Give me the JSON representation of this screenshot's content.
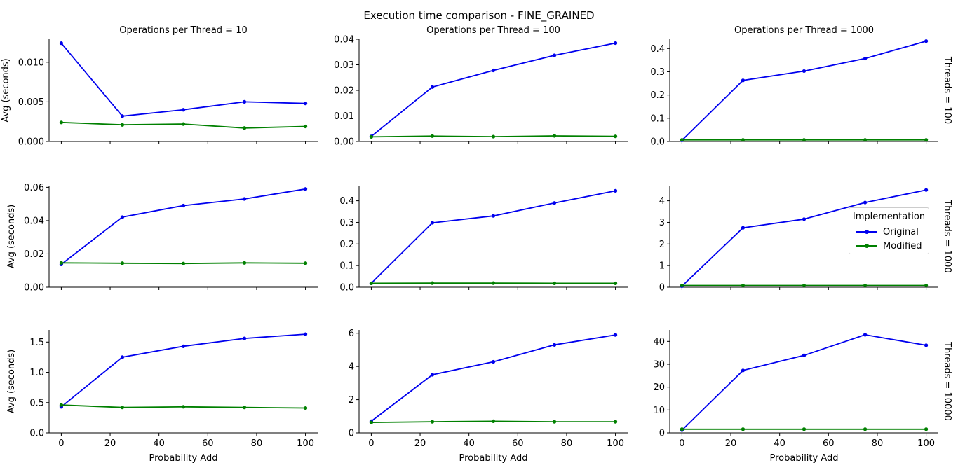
{
  "title": "Execution time comparison - FINE_GRAINED",
  "xlabel": "Probability Add",
  "ylabel": "Avg (seconds)",
  "colors": {
    "Original": "#0000ee",
    "Modified": "#008000"
  },
  "legend": {
    "title": "Implementation",
    "items": [
      "Original",
      "Modified"
    ],
    "placement": "right"
  },
  "col_titles": [
    "Operations per Thread = 10",
    "Operations per Thread = 100",
    "Operations per Thread = 1000"
  ],
  "row_titles": [
    "Threads = 100",
    "Threads = 1000",
    "Threads = 10000"
  ],
  "chart_data": {
    "type": "line",
    "x": [
      0,
      25,
      50,
      75,
      100
    ],
    "xticks": [
      0,
      20,
      40,
      60,
      80,
      100
    ],
    "xlim": [
      -5,
      105
    ],
    "panels": [
      {
        "row": 0,
        "col": 0,
        "ylim": [
          0,
          0.0129
        ],
        "yticks": [
          0.0,
          0.005,
          0.01
        ],
        "yticklabels": [
          "0.000",
          "0.005",
          "0.010"
        ],
        "series": [
          {
            "name": "Original",
            "values": [
              0.0124,
              0.0032,
              0.004,
              0.005,
              0.0048
            ]
          },
          {
            "name": "Modified",
            "values": [
              0.0024,
              0.0021,
              0.0022,
              0.0017,
              0.0019
            ]
          }
        ]
      },
      {
        "row": 0,
        "col": 1,
        "ylim": [
          0,
          0.04
        ],
        "yticks": [
          0.0,
          0.01,
          0.02,
          0.03,
          0.04
        ],
        "yticklabels": [
          "0.00",
          "0.01",
          "0.02",
          "0.03",
          "0.04"
        ],
        "series": [
          {
            "name": "Original",
            "values": [
              0.002,
              0.0213,
              0.0278,
              0.0337,
              0.0385
            ]
          },
          {
            "name": "Modified",
            "values": [
              0.0018,
              0.0021,
              0.0019,
              0.0022,
              0.002
            ]
          }
        ]
      },
      {
        "row": 0,
        "col": 2,
        "ylim": [
          0,
          0.44
        ],
        "yticks": [
          0.0,
          0.1,
          0.2,
          0.3,
          0.4
        ],
        "yticklabels": [
          "0.0",
          "0.1",
          "0.2",
          "0.3",
          "0.4"
        ],
        "series": [
          {
            "name": "Original",
            "values": [
              0.005,
              0.263,
              0.303,
              0.357,
              0.432
            ]
          },
          {
            "name": "Modified",
            "values": [
              0.007,
              0.007,
              0.007,
              0.007,
              0.007
            ]
          }
        ]
      },
      {
        "row": 1,
        "col": 0,
        "ylim": [
          0,
          0.061
        ],
        "yticks": [
          0.0,
          0.02,
          0.04,
          0.06
        ],
        "yticklabels": [
          "0.00",
          "0.02",
          "0.04",
          "0.06"
        ],
        "series": [
          {
            "name": "Original",
            "values": [
              0.0137,
              0.0421,
              0.049,
              0.053,
              0.059
            ]
          },
          {
            "name": "Modified",
            "values": [
              0.0146,
              0.0144,
              0.0142,
              0.0146,
              0.0144
            ]
          }
        ]
      },
      {
        "row": 1,
        "col": 1,
        "ylim": [
          0,
          0.47
        ],
        "yticks": [
          0.0,
          0.1,
          0.2,
          0.3,
          0.4
        ],
        "yticklabels": [
          "0.0",
          "0.1",
          "0.2",
          "0.3",
          "0.4"
        ],
        "series": [
          {
            "name": "Original",
            "values": [
              0.018,
              0.298,
              0.33,
              0.39,
              0.446
            ]
          },
          {
            "name": "Modified",
            "values": [
              0.018,
              0.019,
              0.019,
              0.018,
              0.018
            ]
          }
        ]
      },
      {
        "row": 1,
        "col": 2,
        "ylim": [
          0,
          4.7
        ],
        "yticks": [
          0,
          1,
          2,
          3,
          4
        ],
        "yticklabels": [
          "0",
          "1",
          "2",
          "3",
          "4"
        ],
        "series": [
          {
            "name": "Original",
            "values": [
              0.05,
              2.75,
              3.15,
              3.92,
              4.5
            ]
          },
          {
            "name": "Modified",
            "values": [
              0.08,
              0.08,
              0.08,
              0.08,
              0.08
            ]
          }
        ]
      },
      {
        "row": 2,
        "col": 0,
        "ylim": [
          0,
          1.7
        ],
        "yticks": [
          0.0,
          0.5,
          1.0,
          1.5
        ],
        "yticklabels": [
          "0.0",
          "0.5",
          "1.0",
          "1.5"
        ],
        "series": [
          {
            "name": "Original",
            "values": [
              0.43,
              1.25,
              1.43,
              1.56,
              1.63
            ]
          },
          {
            "name": "Modified",
            "values": [
              0.46,
              0.42,
              0.43,
              0.42,
              0.41
            ]
          }
        ]
      },
      {
        "row": 2,
        "col": 1,
        "ylim": [
          0,
          6.2
        ],
        "yticks": [
          0,
          2,
          4,
          6
        ],
        "yticklabels": [
          "0",
          "2",
          "4",
          "6"
        ],
        "series": [
          {
            "name": "Original",
            "values": [
              0.7,
              3.5,
              4.28,
              5.3,
              5.9
            ]
          },
          {
            "name": "Modified",
            "values": [
              0.63,
              0.67,
              0.7,
              0.67,
              0.67
            ]
          }
        ]
      },
      {
        "row": 2,
        "col": 2,
        "ylim": [
          0,
          45
        ],
        "yticks": [
          0,
          10,
          20,
          30,
          40
        ],
        "yticklabels": [
          "0",
          "10",
          "20",
          "30",
          "40"
        ],
        "series": [
          {
            "name": "Original",
            "values": [
              1.2,
              27.3,
              33.9,
              42.9,
              38.3
            ]
          },
          {
            "name": "Modified",
            "values": [
              1.6,
              1.6,
              1.6,
              1.6,
              1.6
            ]
          }
        ]
      }
    ]
  }
}
